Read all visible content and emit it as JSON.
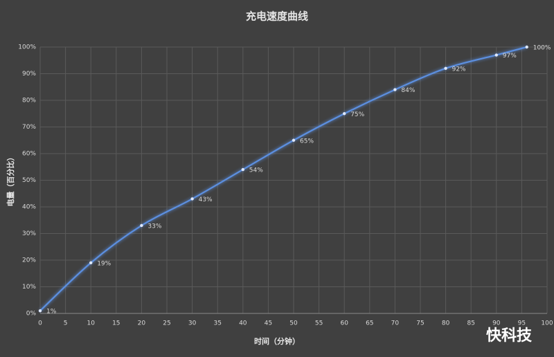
{
  "chart_data": {
    "type": "line",
    "title": "充电速度曲线",
    "x_label": "时间（分钟）",
    "y_label": "电量（百分比）",
    "x": [
      0,
      10,
      20,
      30,
      40,
      50,
      60,
      70,
      80,
      90,
      96
    ],
    "values": [
      1,
      19,
      33,
      43,
      54,
      65,
      75,
      84,
      92,
      97,
      100
    ],
    "value_labels": [
      "1%",
      "19%",
      "33%",
      "43%",
      "54%",
      "65%",
      "75%",
      "84%",
      "92%",
      "97%",
      "100%"
    ],
    "color": "#5b8fe0",
    "xlim": [
      0,
      100
    ],
    "xticks": [
      0,
      5,
      10,
      15,
      20,
      25,
      30,
      35,
      40,
      45,
      50,
      55,
      60,
      65,
      70,
      75,
      80,
      85,
      90,
      95,
      100
    ],
    "ylim": [
      0,
      100
    ],
    "yticks": [
      {
        "value": 0,
        "label": "0%"
      },
      {
        "value": 10,
        "label": "10%"
      },
      {
        "value": 20,
        "label": "20%"
      },
      {
        "value": 30,
        "label": "30%"
      },
      {
        "value": 40,
        "label": "40%"
      },
      {
        "value": 50,
        "label": "50%"
      },
      {
        "value": 60,
        "label": "60%"
      },
      {
        "value": 70,
        "label": "70%"
      },
      {
        "value": 80,
        "label": "80%"
      },
      {
        "value": 90,
        "label": "90%"
      },
      {
        "value": 100,
        "label": "100%"
      }
    ],
    "grid": true,
    "smooth": true,
    "watermark": "快科技"
  }
}
